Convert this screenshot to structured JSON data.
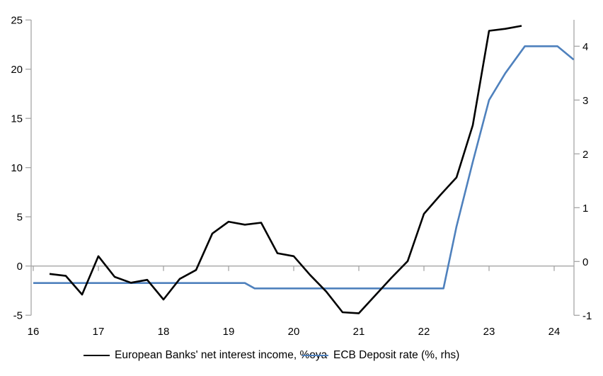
{
  "background": "#ffffff",
  "axis_color": "#a6a6a6",
  "chart_data": {
    "type": "line",
    "title": "",
    "xlabel": "",
    "ylabel_left": "",
    "ylabel_right": "",
    "grid": "zero-line-only",
    "legend_position": "bottom",
    "x_axis": {
      "tick_labels": [
        "16",
        "17",
        "18",
        "19",
        "20",
        "21",
        "22",
        "23",
        "24"
      ],
      "tick_values": [
        16,
        17,
        18,
        19,
        20,
        21,
        22,
        23,
        24
      ],
      "range": [
        15.97,
        24.33
      ]
    },
    "left_axis": {
      "tick_labels": [
        "-5",
        "0",
        "5",
        "10",
        "15",
        "20",
        "25"
      ],
      "tick_values": [
        -5,
        0,
        5,
        10,
        15,
        20,
        25
      ],
      "range": [
        -5,
        25
      ]
    },
    "right_axis": {
      "tick_labels": [
        "-1",
        "0",
        "1",
        "2",
        "3",
        "4"
      ],
      "tick_values": [
        -1,
        0,
        1,
        2,
        3,
        4
      ],
      "range": [
        -1,
        4.49
      ]
    },
    "series": [
      {
        "name": "European Banks' net interest income, %oya",
        "axis": "left",
        "color": "#000000",
        "stroke_width": 2.6,
        "points": [
          [
            16.25,
            -0.8
          ],
          [
            16.5,
            -1.0
          ],
          [
            16.75,
            -2.9
          ],
          [
            17.0,
            1.0
          ],
          [
            17.25,
            -1.1
          ],
          [
            17.5,
            -1.7
          ],
          [
            17.75,
            -1.4
          ],
          [
            18.0,
            -3.4
          ],
          [
            18.25,
            -1.3
          ],
          [
            18.5,
            -0.4
          ],
          [
            18.75,
            3.3
          ],
          [
            19.0,
            4.5
          ],
          [
            19.25,
            4.2
          ],
          [
            19.5,
            4.4
          ],
          [
            19.75,
            1.3
          ],
          [
            20.0,
            1.0
          ],
          [
            20.25,
            -0.9
          ],
          [
            20.5,
            -2.6
          ],
          [
            20.75,
            -4.7
          ],
          [
            21.0,
            -4.8
          ],
          [
            21.25,
            -3.0
          ],
          [
            21.5,
            -1.2
          ],
          [
            21.75,
            0.5
          ],
          [
            22.0,
            5.3
          ],
          [
            22.25,
            7.2
          ],
          [
            22.5,
            9.0
          ],
          [
            22.75,
            14.3
          ],
          [
            23.0,
            23.9
          ],
          [
            23.25,
            24.1
          ],
          [
            23.5,
            24.4
          ]
        ]
      },
      {
        "name": "ECB Deposit rate (%, rhs)",
        "axis": "right",
        "color": "#4f81bd",
        "stroke_width": 2.6,
        "points": [
          [
            16.0,
            -0.4
          ],
          [
            19.25,
            -0.4
          ],
          [
            19.4,
            -0.5
          ],
          [
            22.3,
            -0.5
          ],
          [
            22.5,
            0.65
          ],
          [
            22.75,
            1.85
          ],
          [
            23.0,
            3.0
          ],
          [
            23.25,
            3.5
          ],
          [
            23.55,
            4.0
          ],
          [
            24.05,
            4.0
          ],
          [
            24.3,
            3.75
          ]
        ]
      }
    ]
  }
}
